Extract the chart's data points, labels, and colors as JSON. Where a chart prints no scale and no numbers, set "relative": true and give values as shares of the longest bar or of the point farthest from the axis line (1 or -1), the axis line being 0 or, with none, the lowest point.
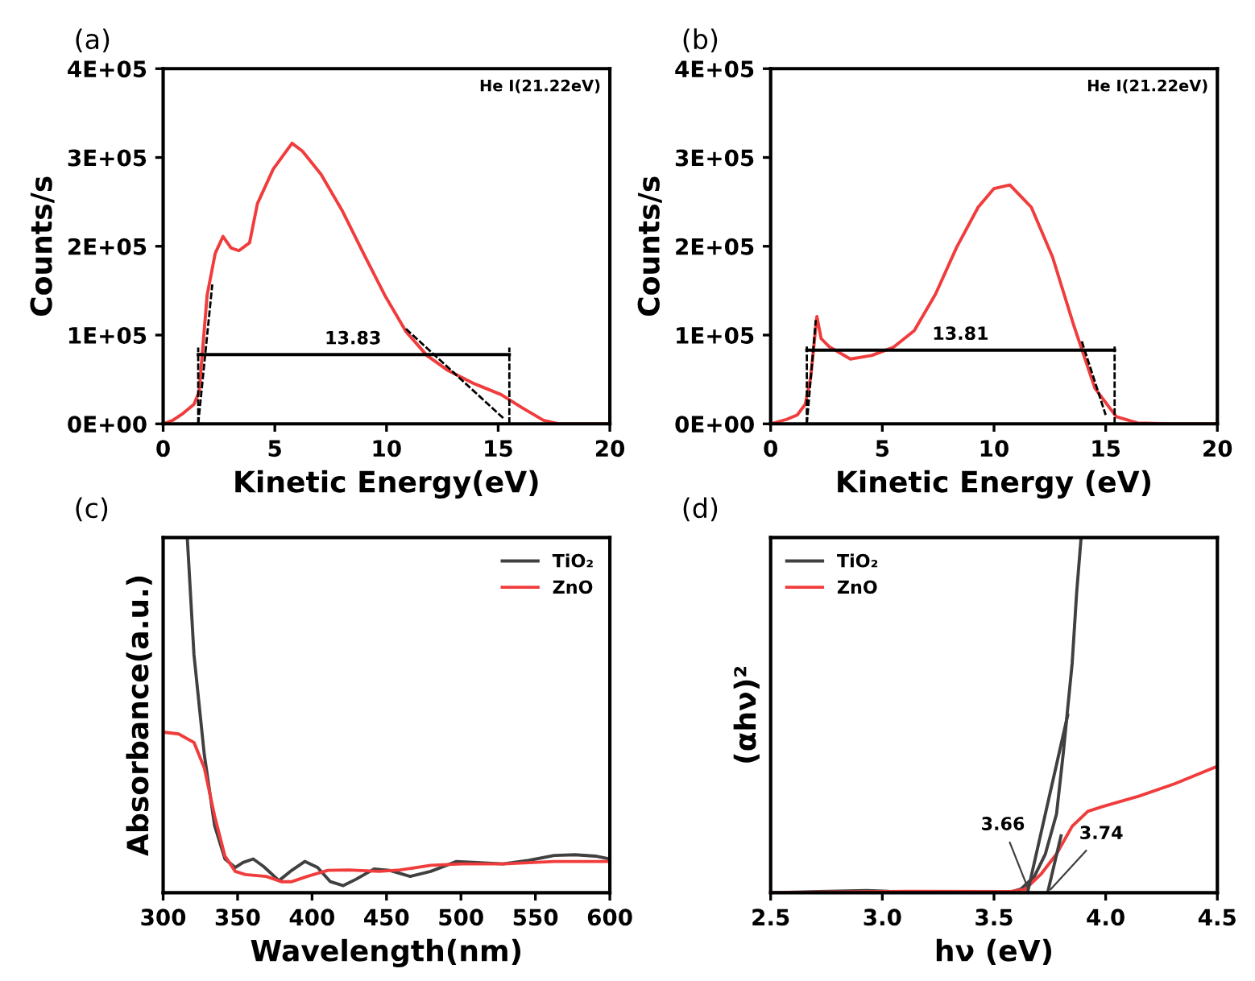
{
  "chart_data": [
    {
      "type": "line",
      "title": "(a)",
      "xlabel": "Kinetic Energy(eV)",
      "ylabel": "Counts/s",
      "xlim": [
        0,
        20
      ],
      "xticks": [
        0,
        5,
        10,
        15,
        20
      ],
      "ylim": [
        0,
        400000
      ],
      "yticks": [
        {
          "value": 0,
          "label": "0E+00"
        },
        {
          "value": 100000,
          "label": "1E+05"
        },
        {
          "value": 200000,
          "label": "2E+05"
        },
        {
          "value": 300000,
          "label": "3E+05"
        },
        {
          "value": 400000,
          "label": "4E+05"
        }
      ],
      "grid": false,
      "annotations": [
        "He I(21.22eV)",
        {
          "text": "13.83",
          "x": 8.5,
          "y": 78000
        }
      ],
      "series": [
        {
          "color": "#f03c3c",
          "x": [
            0,
            0.43,
            0.9,
            1.38,
            1.61,
            1.97,
            2.33,
            2.68,
            3.04,
            3.39,
            3.87,
            4.22,
            4.93,
            5.77,
            6.24,
            7.07,
            8.02,
            8.97,
            9.92,
            10.87,
            11.81,
            12.76,
            13.95,
            15.13,
            16.08,
            17.03,
            17.7,
            20
          ],
          "values": [
            0,
            4000,
            12000,
            22000,
            36000,
            145000,
            192000,
            211000,
            198000,
            195000,
            204000,
            248000,
            287000,
            316000,
            307000,
            281000,
            240000,
            192000,
            145000,
            104000,
            77000,
            60000,
            45000,
            33000,
            18000,
            4000,
            0,
            0
          ]
        },
        {
          "color": "#000000",
          "line_style": "dashed",
          "x": [
            1.57,
            2.2
          ],
          "values": [
            0,
            157000
          ]
        },
        {
          "color": "#000000",
          "line_style": "dashed",
          "x": [
            10.87,
            15.25
          ],
          "values": [
            107000,
            6000
          ]
        },
        {
          "color": "#000000",
          "line_style": "dashed",
          "x": [
            1.57,
            1.57
          ],
          "values": [
            0,
            86000
          ]
        },
        {
          "color": "#000000",
          "line_style": "dashed",
          "x": [
            15.5,
            15.5
          ],
          "values": [
            0,
            86000
          ]
        },
        {
          "color": "#000000",
          "x": [
            1.57,
            15.5
          ],
          "values": [
            78000,
            78000
          ]
        }
      ]
    },
    {
      "type": "line",
      "title": "(b)",
      "xlabel": "Kinetic Energy (eV)",
      "ylabel": "Counts/s",
      "xlim": [
        0,
        20
      ],
      "xticks": [
        0,
        5,
        10,
        15,
        20
      ],
      "ylim": [
        0,
        400000
      ],
      "yticks": [
        {
          "value": 0,
          "label": "0E+00"
        },
        {
          "value": 100000,
          "label": "1E+05"
        },
        {
          "value": 200000,
          "label": "2E+05"
        },
        {
          "value": 300000,
          "label": "3E+05"
        },
        {
          "value": 400000,
          "label": "4E+05"
        }
      ],
      "grid": false,
      "annotations": [
        "He I(21.22eV)",
        {
          "text": "13.81",
          "x": 8.5,
          "y": 83000
        }
      ],
      "series": [
        {
          "color": "#f03c3c",
          "x": [
            0,
            0.71,
            1.19,
            1.55,
            1.79,
            2.07,
            2.26,
            2.62,
            3.57,
            4.52,
            5.48,
            6.43,
            7.38,
            8.33,
            9.29,
            10.0,
            10.71,
            11.67,
            12.62,
            13.57,
            14.52,
            15.48,
            16.43,
            17.86,
            20
          ],
          "values": [
            0,
            5000,
            10000,
            22000,
            52000,
            121000,
            96000,
            87000,
            73000,
            77000,
            86000,
            105000,
            146000,
            199000,
            244000,
            265000,
            269000,
            244000,
            188000,
            111000,
            40000,
            8000,
            1000,
            0,
            0
          ]
        },
        {
          "color": "#000000",
          "line_style": "dashed",
          "x": [
            1.62,
            2.02
          ],
          "values": [
            0,
            117000
          ]
        },
        {
          "color": "#000000",
          "line_style": "dashed",
          "x": [
            13.93,
            15.0
          ],
          "values": [
            93000,
            10000
          ]
        },
        {
          "color": "#000000",
          "line_style": "dashed",
          "x": [
            1.62,
            1.62
          ],
          "values": [
            0,
            87000
          ]
        },
        {
          "color": "#000000",
          "line_style": "dashed",
          "x": [
            15.4,
            15.4
          ],
          "values": [
            0,
            87000
          ]
        },
        {
          "color": "#000000",
          "x": [
            1.62,
            15.4
          ],
          "values": [
            83000,
            83000
          ]
        }
      ]
    },
    {
      "type": "line",
      "title": "(c)",
      "xlabel": "Wavelength(nm)",
      "ylabel": "Absorbance(a.u.)",
      "relative": true,
      "xlim": [
        300,
        600
      ],
      "xticks": [
        300,
        350,
        400,
        450,
        500,
        550,
        600
      ],
      "grid": false,
      "legend": "top right",
      "series": [
        {
          "name": "TiO₂",
          "color": "#404040",
          "x": [
            316.2,
            320.7,
            327.6,
            334.5,
            341.5,
            348.4,
            353.6,
            360.5,
            367.4,
            377.8,
            386.4,
            395.1,
            403.7,
            412.3,
            421,
            429.6,
            441.7,
            452,
            465.9,
            479.7,
            497,
            510.9,
            528.2,
            545.5,
            562.7,
            576.6,
            590.4,
            600
          ],
          "values": [
            1.0,
            0.67,
            0.39,
            0.19,
            0.095,
            0.071,
            0.085,
            0.095,
            0.074,
            0.034,
            0.063,
            0.088,
            0.071,
            0.031,
            0.02,
            0.038,
            0.067,
            0.063,
            0.046,
            0.06,
            0.088,
            0.085,
            0.081,
            0.091,
            0.105,
            0.107,
            0.103,
            0.095
          ]
        },
        {
          "name": "ZnO",
          "color": "#f03c3c",
          "x": [
            300,
            310.4,
            320.7,
            327.6,
            334.5,
            341.5,
            348.4,
            355.3,
            369.1,
            379.5,
            386.4,
            396.8,
            410.6,
            424.5,
            445.2,
            459,
            479.7,
            500.4,
            528.2,
            562.7,
            600
          ],
          "values": [
            0.452,
            0.447,
            0.423,
            0.352,
            0.217,
            0.103,
            0.06,
            0.051,
            0.046,
            0.031,
            0.031,
            0.046,
            0.063,
            0.064,
            0.06,
            0.064,
            0.077,
            0.081,
            0.081,
            0.088,
            0.088
          ]
        }
      ]
    },
    {
      "type": "line",
      "title": "(d)",
      "xlabel": "hν (eV)",
      "ylabel": "(αhν)²",
      "relative": true,
      "xlim": [
        2.5,
        4.5
      ],
      "xticks": [
        {
          "value": 2.5,
          "label": "2.5"
        },
        {
          "value": 3.0,
          "label": "3.0"
        },
        {
          "value": 3.5,
          "label": "3.5"
        },
        {
          "value": 4.0,
          "label": "4.0"
        },
        {
          "value": 4.5,
          "label": "4.5"
        }
      ],
      "grid": false,
      "legend": "top left",
      "annotations": [
        {
          "text": "3.66",
          "x": 3.66,
          "y": 0
        },
        {
          "text": "3.74",
          "x": 3.74,
          "y": 0
        }
      ],
      "series": [
        {
          "name": "TiO₂",
          "color": "#404040",
          "x": [
            2.5,
            2.93,
            3.03,
            3.57,
            3.62,
            3.68,
            3.73,
            3.78,
            3.81,
            3.85,
            3.87,
            3.89
          ],
          "values": [
            0,
            0.006,
            0.004,
            0.001,
            0.01,
            0.045,
            0.109,
            0.222,
            0.392,
            0.646,
            0.844,
            1.0
          ]
        },
        {
          "name": "ZnO",
          "color": "#f03c3c",
          "x": [
            2.5,
            3.12,
            3.57,
            3.64,
            3.71,
            3.78,
            3.85,
            3.92,
            3.99,
            4.15,
            4.31,
            4.5
          ],
          "values": [
            0,
            0.004,
            0.003,
            0.01,
            0.052,
            0.109,
            0.187,
            0.229,
            0.243,
            0.272,
            0.307,
            0.356
          ]
        },
        {
          "color": "#404040",
          "x": [
            3.65,
            3.83
          ],
          "values": [
            0,
            0.5
          ]
        },
        {
          "color": "#404040",
          "x": [
            3.74,
            3.8
          ],
          "values": [
            0,
            0.16
          ]
        }
      ]
    }
  ]
}
